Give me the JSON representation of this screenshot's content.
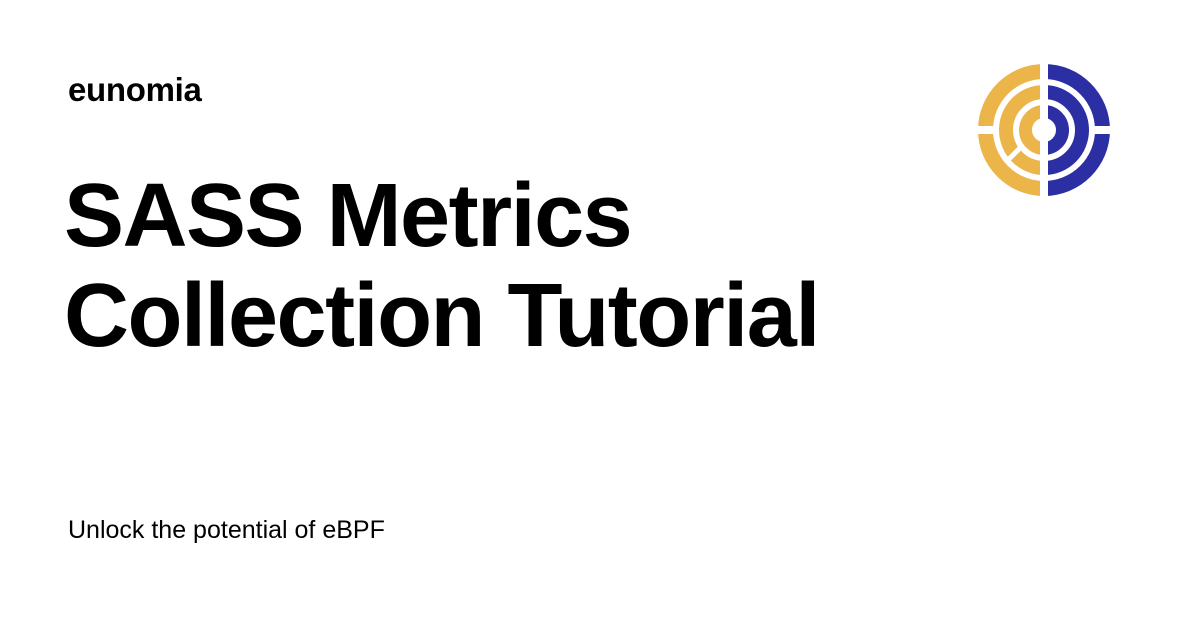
{
  "site": {
    "name": "eunomia"
  },
  "article": {
    "title_line_1": "SASS Metrics",
    "title_line_2": "Collection Tutorial",
    "tagline": "Unlock the potential of eBPF"
  },
  "logo": {
    "icon": "eunomia-logo-icon",
    "colors": {
      "left_half": "#EBB54A",
      "right_half": "#2B2FA3",
      "background": "#FFFFFF"
    }
  }
}
